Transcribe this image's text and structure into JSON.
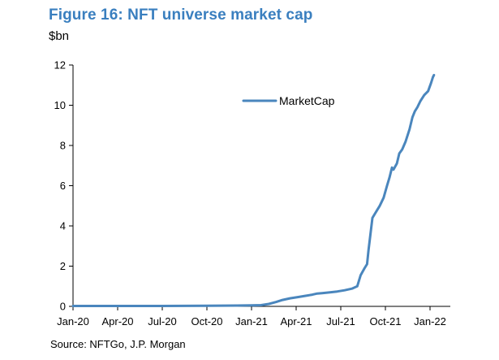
{
  "title": "Figure 16: NFT universe market cap",
  "unit_label": "$bn",
  "source": "Source: NFTGo, J.P. Morgan",
  "colors": {
    "title": "#3a7fbf",
    "series": "#4a86bd",
    "axis": "#000000"
  },
  "chart_data": {
    "type": "line",
    "title": "Figure 16: NFT universe market cap",
    "ylabel": "$bn",
    "xlabel": "",
    "ylim": [
      0,
      12
    ],
    "yticks": [
      0,
      2,
      4,
      6,
      8,
      10,
      12
    ],
    "xtick_labels": [
      "Jan-20",
      "Apr-20",
      "Jul-20",
      "Oct-20",
      "Jan-21",
      "Apr-21",
      "Jul-21",
      "Oct-21",
      "Jan-22"
    ],
    "grid": false,
    "legend_position": "top-center",
    "series": [
      {
        "name": "MarketCap",
        "points": [
          [
            "2020-01-01",
            0.02
          ],
          [
            "2020-04-01",
            0.02
          ],
          [
            "2020-07-01",
            0.02
          ],
          [
            "2020-10-01",
            0.03
          ],
          [
            "2020-12-01",
            0.04
          ],
          [
            "2021-01-01",
            0.05
          ],
          [
            "2021-01-20",
            0.06
          ],
          [
            "2021-02-05",
            0.12
          ],
          [
            "2021-02-20",
            0.22
          ],
          [
            "2021-03-05",
            0.32
          ],
          [
            "2021-03-20",
            0.4
          ],
          [
            "2021-04-05",
            0.46
          ],
          [
            "2021-04-20",
            0.52
          ],
          [
            "2021-05-05",
            0.58
          ],
          [
            "2021-05-15",
            0.64
          ],
          [
            "2021-05-25",
            0.66
          ],
          [
            "2021-06-10",
            0.7
          ],
          [
            "2021-06-25",
            0.74
          ],
          [
            "2021-07-10",
            0.8
          ],
          [
            "2021-07-25",
            0.88
          ],
          [
            "2021-08-05",
            1.0
          ],
          [
            "2021-08-12",
            1.55
          ],
          [
            "2021-08-20",
            1.9
          ],
          [
            "2021-08-25",
            2.1
          ],
          [
            "2021-08-28",
            2.8
          ],
          [
            "2021-09-01",
            3.6
          ],
          [
            "2021-09-05",
            4.4
          ],
          [
            "2021-09-10",
            4.6
          ],
          [
            "2021-09-15",
            4.8
          ],
          [
            "2021-09-20",
            5.0
          ],
          [
            "2021-09-28",
            5.4
          ],
          [
            "2021-10-05",
            6.0
          ],
          [
            "2021-10-10",
            6.4
          ],
          [
            "2021-10-15",
            6.9
          ],
          [
            "2021-10-18",
            6.8
          ],
          [
            "2021-10-25",
            7.1
          ],
          [
            "2021-10-30",
            7.6
          ],
          [
            "2021-11-05",
            7.8
          ],
          [
            "2021-11-12",
            8.2
          ],
          [
            "2021-11-20",
            8.8
          ],
          [
            "2021-11-26",
            9.4
          ],
          [
            "2021-12-01",
            9.7
          ],
          [
            "2021-12-06",
            9.9
          ],
          [
            "2021-12-12",
            10.2
          ],
          [
            "2021-12-20",
            10.5
          ],
          [
            "2021-12-28",
            10.7
          ],
          [
            "2022-01-03",
            11.1
          ],
          [
            "2022-01-07",
            11.4
          ],
          [
            "2022-01-09",
            11.5
          ]
        ]
      }
    ]
  }
}
